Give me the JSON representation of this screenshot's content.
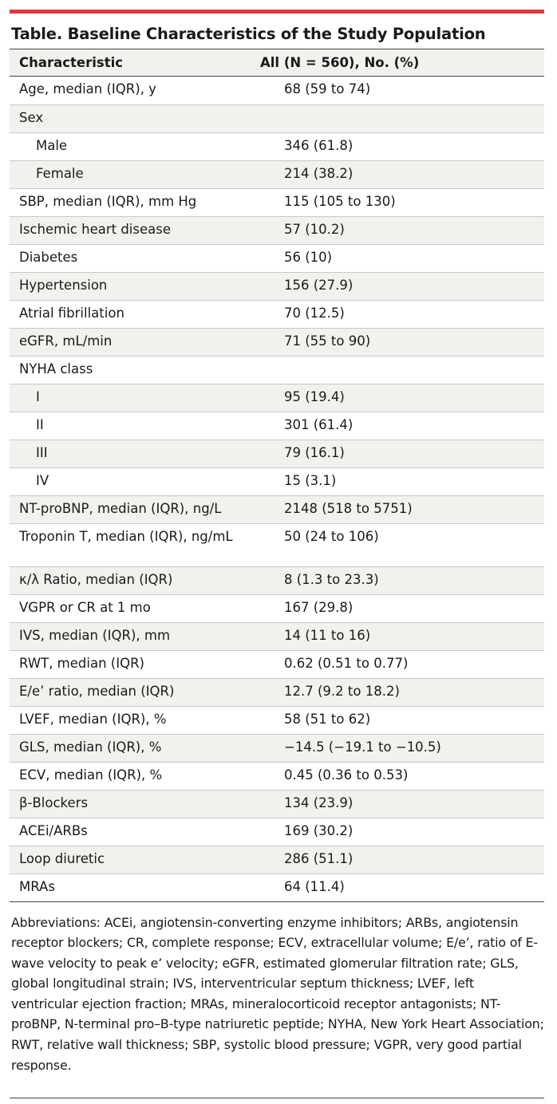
{
  "accent_color": "#e03a3e",
  "title": "Table. Baseline Characteristics of the Study Population",
  "columns": [
    "Characteristic",
    "All (N = 560), No. (%)"
  ],
  "rows": [
    {
      "label": "Age, median (IQR), y",
      "value": "68 (59 to 74)",
      "indent": false
    },
    {
      "label": "Sex",
      "value": "",
      "indent": false
    },
    {
      "label": "Male",
      "value": "346 (61.8)",
      "indent": true
    },
    {
      "label": "Female",
      "value": "214 (38.2)",
      "indent": true
    },
    {
      "label": "SBP, median (IQR), mm Hg",
      "value": "115 (105 to 130)",
      "indent": false
    },
    {
      "label": "Ischemic heart disease",
      "value": "57 (10.2)",
      "indent": false
    },
    {
      "label": "Diabetes",
      "value": "56 (10)",
      "indent": false
    },
    {
      "label": "Hypertension",
      "value": "156 (27.9)",
      "indent": false
    },
    {
      "label": "Atrial fibrillation",
      "value": "70 (12.5)",
      "indent": false
    },
    {
      "label": "eGFR, mL/min",
      "value": "71 (55 to 90)",
      "indent": false
    },
    {
      "label": "NYHA class",
      "value": "",
      "indent": false
    },
    {
      "label": "I",
      "value": "95 (19.4)",
      "indent": true
    },
    {
      "label": "II",
      "value": "301 (61.4)",
      "indent": true
    },
    {
      "label": "III",
      "value": "79 (16.1)",
      "indent": true
    },
    {
      "label": "IV",
      "value": "15 (3.1)",
      "indent": true
    },
    {
      "label": "NT-proBNP, median (IQR), ng/L",
      "value": "2148 (518 to 5751)",
      "indent": false
    },
    {
      "label": "Troponin T, median (IQR), ng/mL",
      "value": "50 (24 to 106)",
      "indent": false
    },
    {
      "label": "κ/λ Ratio, median (IQR)",
      "value": "8 (1.3 to 23.3)",
      "indent": false
    },
    {
      "label": "VGPR or CR at 1 mo",
      "value": "167 (29.8)",
      "indent": false
    },
    {
      "label": "IVS, median (IQR), mm",
      "value": "14 (11 to 16)",
      "indent": false
    },
    {
      "label": "RWT, median (IQR)",
      "value": "0.62 (0.51 to 0.77)",
      "indent": false
    },
    {
      "label": "E/e’ ratio, median (IQR)",
      "value": "12.7 (9.2 to 18.2)",
      "indent": false
    },
    {
      "label": "LVEF, median (IQR), %",
      "value": "58 (51 to 62)",
      "indent": false
    },
    {
      "label": "GLS, median (IQR), %",
      "value": "−14.5 (−19.1 to −10.5)",
      "indent": false
    },
    {
      "label": "ECV, median (IQR), %",
      "value": "0.45 (0.36 to 0.53)",
      "indent": false
    },
    {
      "label": "β-Blockers",
      "value": "134 (23.9)",
      "indent": false
    },
    {
      "label": "ACEi/ARBs",
      "value": "169 (30.2)",
      "indent": false
    },
    {
      "label": "Loop diuretic",
      "value": "286 (51.1)",
      "indent": false
    },
    {
      "label": "MRAs",
      "value": "64 (11.4)",
      "indent": false
    }
  ],
  "footnote": "Abbreviations: ACEi, angiotensin-converting enzyme inhibitors; ARBs, angiotensin receptor blockers; CR, complete response; ECV, extracellular volume; E/e’, ratio of E-wave velocity to peak e’ velocity; eGFR, estimated glomerular filtration rate; GLS, global longitudinal strain; IVS, interventricular septum thickness; LVEF, left ventricular ejection fraction; MRAs, mineralocorticoid receptor antagonists; NT-proBNP, N-terminal pro–B-type natriuretic peptide; NYHA, New York Heart Association; RWT, relative wall thickness; SBP, systolic blood pressure; VGPR, very good partial response."
}
